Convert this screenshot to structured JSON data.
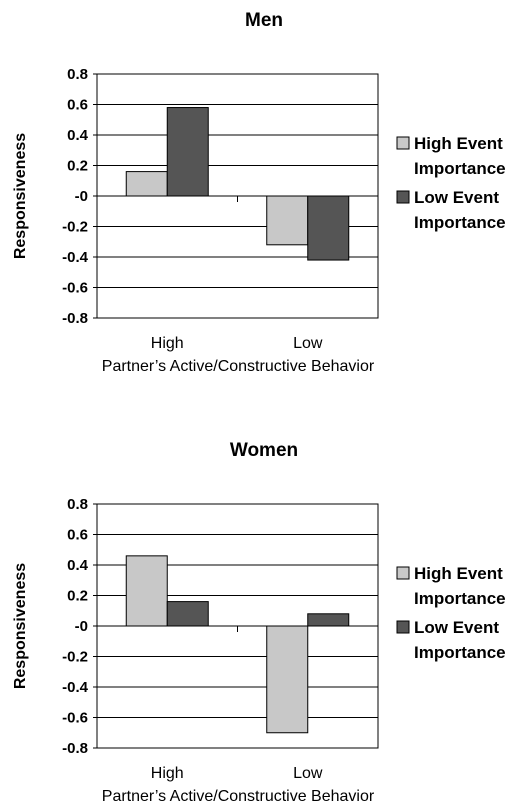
{
  "chart_data": [
    {
      "type": "bar",
      "title": "Men",
      "ylabel": "Responsiveness",
      "xlabel": "Partner’s Active/Constructive Behavior",
      "categories": [
        "High",
        "Low"
      ],
      "ylim": [
        -0.8,
        0.8
      ],
      "yticks": [
        "0.8",
        "0.6",
        "0.4",
        "0.2",
        "-0",
        "-0.2",
        "-0.4",
        "-0.6",
        "-0.8"
      ],
      "grid": true,
      "legend_position": "right",
      "series": [
        {
          "name": "High Event Importance",
          "values": [
            0.16,
            -0.32
          ],
          "color": "#c8c8c8"
        },
        {
          "name": "Low Event Importance",
          "values": [
            0.58,
            -0.42
          ],
          "color": "#555555"
        }
      ],
      "legend": [
        {
          "line1": "High Event",
          "line2": "Importance"
        },
        {
          "line1": "Low Event",
          "line2": "Importance"
        }
      ]
    },
    {
      "type": "bar",
      "title": "Women",
      "ylabel": "Responsiveness",
      "xlabel": "Partner’s Active/Constructive Behavior",
      "categories": [
        "High",
        "Low"
      ],
      "ylim": [
        -0.8,
        0.8
      ],
      "yticks": [
        "0.8",
        "0.6",
        "0.4",
        "0.2",
        "-0",
        "-0.2",
        "-0.4",
        "-0.6",
        "-0.8"
      ],
      "grid": true,
      "legend_position": "right",
      "series": [
        {
          "name": "High Event Importance",
          "values": [
            0.46,
            -0.7
          ],
          "color": "#c8c8c8"
        },
        {
          "name": "Low Event Importance",
          "values": [
            0.16,
            0.08
          ],
          "color": "#555555"
        }
      ],
      "legend": [
        {
          "line1": "High Event",
          "line2": "Importance"
        },
        {
          "line1": "Low Event",
          "line2": "Importance"
        }
      ]
    }
  ]
}
